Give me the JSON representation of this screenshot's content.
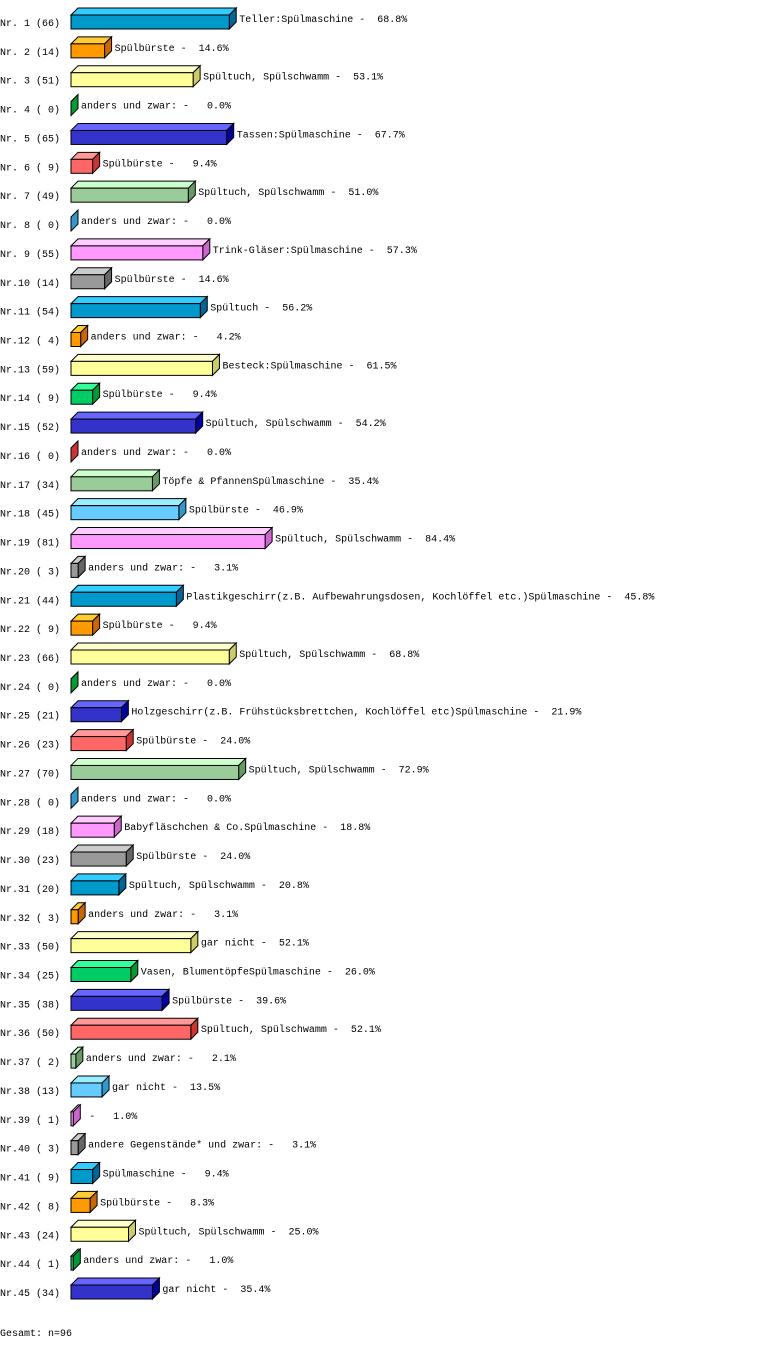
{
  "chart_data": {
    "type": "bar",
    "orientation": "horizontal",
    "style": "3d",
    "categories": [
      "Nr. 1",
      "Nr. 2",
      "Nr. 3",
      "Nr. 4",
      "Nr. 5",
      "Nr. 6",
      "Nr. 7",
      "Nr. 8",
      "Nr. 9",
      "Nr.10",
      "Nr.11",
      "Nr.12",
      "Nr.13",
      "Nr.14",
      "Nr.15",
      "Nr.16",
      "Nr.17",
      "Nr.18",
      "Nr.19",
      "Nr.20",
      "Nr.21",
      "Nr.22",
      "Nr.23",
      "Nr.24",
      "Nr.25",
      "Nr.26",
      "Nr.27",
      "Nr.28",
      "Nr.29",
      "Nr.30",
      "Nr.31",
      "Nr.32",
      "Nr.33",
      "Nr.34",
      "Nr.35",
      "Nr.36",
      "Nr.37",
      "Nr.38",
      "Nr.39",
      "Nr.40",
      "Nr.41",
      "Nr.42",
      "Nr.43",
      "Nr.44",
      "Nr.45"
    ],
    "counts": [
      66,
      14,
      51,
      0,
      65,
      9,
      49,
      0,
      55,
      14,
      54,
      4,
      59,
      9,
      52,
      0,
      34,
      45,
      81,
      3,
      44,
      9,
      66,
      0,
      21,
      23,
      70,
      0,
      18,
      23,
      20,
      3,
      50,
      25,
      38,
      50,
      2,
      13,
      1,
      3,
      9,
      8,
      24,
      1,
      34
    ],
    "values": [
      68.8,
      14.6,
      53.1,
      0.0,
      67.7,
      9.4,
      51.0,
      0.0,
      57.3,
      14.6,
      56.2,
      4.2,
      61.5,
      9.4,
      54.2,
      0.0,
      35.4,
      46.9,
      84.4,
      3.1,
      45.8,
      9.4,
      68.8,
      0.0,
      21.9,
      24.0,
      72.9,
      0.0,
      18.8,
      24.0,
      20.8,
      3.1,
      52.1,
      26.0,
      39.6,
      52.1,
      2.1,
      13.5,
      1.0,
      3.1,
      9.4,
      8.3,
      25.0,
      1.0,
      35.4
    ],
    "labels": [
      "Teller:Spülmaschine",
      "Spülbürste",
      "Spültuch, Spülschwamm",
      "anders und zwar:",
      "Tassen:Spülmaschine",
      "Spülbürste",
      "Spültuch, Spülschwamm",
      "anders und zwar:",
      "Trink-Gläser:Spülmaschine",
      "Spülbürste",
      "Spültuch",
      "anders und zwar:",
      "Besteck:Spülmaschine",
      "Spülbürste",
      "Spültuch, Spülschwamm",
      "anders und zwar:",
      "Töpfe & PfannenSpülmaschine",
      "Spülbürste",
      "Spültuch, Spülschwamm",
      "anders und zwar:",
      "Plastikgeschirr(z.B. Aufbewahrungsdosen, Kochlöffel etc.)Spülmaschine",
      "Spülbürste",
      "Spültuch, Spülschwamm",
      "anders und zwar:",
      "Holzgeschirr(z.B. Frühstücksbrettchen, Kochlöffel etc)Spülmaschine",
      "Spülbürste",
      "Spültuch, Spülschwamm",
      "anders und zwar:",
      "Babyfläschchen & Co.Spülmaschine",
      "Spülbürste",
      "Spültuch, Spülschwamm",
      "anders und zwar:",
      "gar nicht",
      "Vasen, BlumentöpfeSpülmaschine",
      "Spülbürste",
      "Spültuch, Spülschwamm",
      "anders und zwar:",
      "gar nicht",
      "",
      "andere Gegenstände* und zwar:",
      "Spülmaschine",
      "Spülbürste",
      "Spültuch, Spülschwamm",
      "anders und zwar:",
      "gar nicht"
    ],
    "unit": "%",
    "xlim": [
      0,
      100
    ],
    "grid": false,
    "legend": "none",
    "palette": [
      {
        "front": "#0099cc",
        "top": "#33ccff",
        "side": "#006699"
      },
      {
        "front": "#ff9900",
        "top": "#ffcc33",
        "side": "#cc6600"
      },
      {
        "front": "#ffff99",
        "top": "#ffffcc",
        "side": "#cccc66"
      },
      {
        "front": "#00cc66",
        "top": "#33ff99",
        "side": "#009933"
      },
      {
        "front": "#3333cc",
        "top": "#6666ff",
        "side": "#000099"
      },
      {
        "front": "#ff6666",
        "top": "#ff9999",
        "side": "#cc3333"
      },
      {
        "front": "#99cc99",
        "top": "#ccffcc",
        "side": "#669966"
      },
      {
        "front": "#66ccff",
        "top": "#99eeff",
        "side": "#3399cc"
      },
      {
        "front": "#ff99ff",
        "top": "#ffccff",
        "side": "#cc66cc"
      },
      {
        "front": "#999999",
        "top": "#cccccc",
        "side": "#666666"
      }
    ],
    "footer": "Gesamt: n=96"
  }
}
